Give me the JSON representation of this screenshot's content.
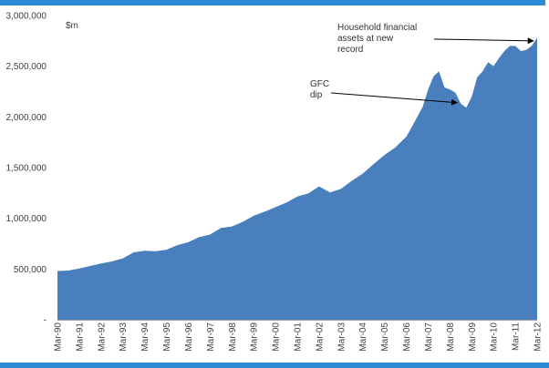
{
  "chart_data": {
    "type": "area",
    "ylabel": "$m",
    "ylim": [
      0,
      3000000
    ],
    "y_ticks": [
      "3,000,000",
      "2,500,000",
      "2,000,000",
      "1,500,000",
      "1,000,000",
      "500,000",
      "-"
    ],
    "x_ticks": [
      "Mar-90",
      "Mar-91",
      "Mar-92",
      "Mar-93",
      "Mar-94",
      "Mar-95",
      "Mar-96",
      "Mar-97",
      "Mar-98",
      "Mar-99",
      "Mar-00",
      "Mar-01",
      "Mar-02",
      "Mar-03",
      "Mar-04",
      "Mar-05",
      "Mar-06",
      "Mar-07",
      "Mar-08",
      "Mar-09",
      "Mar-10",
      "Mar-11",
      "Mar-12"
    ],
    "x": [
      1990.0,
      1990.5,
      1991.0,
      1991.5,
      1992.0,
      1992.5,
      1993.0,
      1993.5,
      1994.0,
      1994.5,
      1995.0,
      1995.5,
      1996.0,
      1996.5,
      1997.0,
      1997.5,
      1998.0,
      1998.5,
      1999.0,
      1999.5,
      2000.0,
      2000.5,
      2001.0,
      2001.5,
      2002.0,
      2002.5,
      2003.0,
      2003.5,
      2004.0,
      2004.5,
      2005.0,
      2005.5,
      2006.0,
      2006.25,
      2006.5,
      2006.75,
      2007.0,
      2007.25,
      2007.5,
      2007.75,
      2008.0,
      2008.25,
      2008.5,
      2008.75,
      2009.0,
      2009.25,
      2009.5,
      2009.75,
      2010.0,
      2010.25,
      2010.5,
      2010.75,
      2011.0,
      2011.25,
      2011.5,
      2011.75,
      2012.0
    ],
    "series": [
      {
        "values": [
          480000,
          485000,
          505000,
          530000,
          555000,
          575000,
          605000,
          665000,
          680000,
          675000,
          690000,
          735000,
          765000,
          815000,
          840000,
          905000,
          920000,
          965000,
          1025000,
          1065000,
          1110000,
          1155000,
          1215000,
          1245000,
          1315000,
          1255000,
          1290000,
          1370000,
          1440000,
          1535000,
          1625000,
          1700000,
          1805000,
          1900000,
          2000000,
          2100000,
          2270000,
          2400000,
          2450000,
          2290000,
          2270000,
          2240000,
          2130000,
          2090000,
          2200000,
          2390000,
          2450000,
          2540000,
          2500000,
          2580000,
          2650000,
          2700000,
          2700000,
          2650000,
          2660000,
          2700000,
          2780000
        ],
        "color": "#4a7fbd"
      }
    ],
    "annotations": [
      {
        "lines": [
          "GFC",
          "dip"
        ],
        "points_at_x": 2008.5,
        "points_at_y": 2140000
      },
      {
        "lines": [
          "Household financial",
          "assets at new",
          "record"
        ],
        "points_at_x": 2012.0,
        "points_at_y": 2750000
      }
    ],
    "grid": false,
    "legend": "none"
  }
}
